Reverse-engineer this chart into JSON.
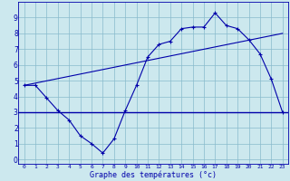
{
  "x": [
    0,
    1,
    2,
    3,
    4,
    5,
    6,
    7,
    8,
    9,
    10,
    11,
    12,
    13,
    14,
    15,
    16,
    17,
    18,
    19,
    20,
    21,
    22,
    23
  ],
  "temp": [
    4.7,
    4.7,
    3.9,
    3.1,
    2.5,
    1.5,
    1.0,
    0.4,
    1.3,
    3.1,
    4.7,
    6.5,
    7.3,
    7.5,
    8.3,
    8.4,
    8.4,
    9.3,
    8.5,
    8.3,
    7.6,
    6.7,
    5.1,
    3.0
  ],
  "avg_line_y": 3.0,
  "trend_x": [
    0,
    23
  ],
  "trend_y": [
    4.7,
    8.0
  ],
  "line_color": "#0000aa",
  "bg_color": "#cce8ee",
  "grid_color": "#88bbcc",
  "xlabel": "Graphe des températures (°c)",
  "xlim": [
    -0.5,
    23.5
  ],
  "ylim": [
    -0.3,
    10.0
  ],
  "xticks": [
    0,
    1,
    2,
    3,
    4,
    5,
    6,
    7,
    8,
    9,
    10,
    11,
    12,
    13,
    14,
    15,
    16,
    17,
    18,
    19,
    20,
    21,
    22,
    23
  ],
  "yticks": [
    0,
    1,
    2,
    3,
    4,
    5,
    6,
    7,
    8,
    9
  ],
  "xlabel_fontsize": 6.0,
  "tick_fontsize_x": 4.5,
  "tick_fontsize_y": 5.5
}
